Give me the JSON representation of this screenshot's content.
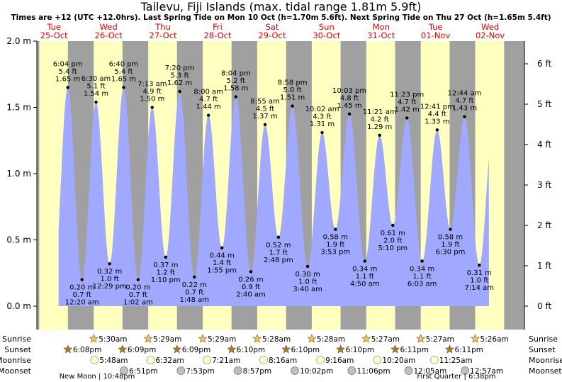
{
  "header": {
    "title": "Tailevu, Fiji Islands (max. tidal range 1.81m 5.9ft)",
    "subtitle": "Times are +12 (UTC +12.0hrs). Last Spring Tide on Mon 10 Oct (h=1.70m 5.6ft). Next Spring Tide on Thu 27 Oct (h=1.65m 5.4ft)"
  },
  "colors": {
    "day": "#ffffc0",
    "night": "#a0a0a0",
    "tide_fill": "#a0a8ff",
    "day_label": "#e00000",
    "sun_star": "#e8c860",
    "sunset_star": "#a08030",
    "moonrise": "#ffffc8",
    "moonset": "#c0c0c0"
  },
  "days": [
    {
      "dow": "Tue",
      "date": "25-Oct"
    },
    {
      "dow": "Wed",
      "date": "26-Oct"
    },
    {
      "dow": "Thu",
      "date": "27-Oct"
    },
    {
      "dow": "Fri",
      "date": "28-Oct"
    },
    {
      "dow": "Sat",
      "date": "29-Oct"
    },
    {
      "dow": "Sun",
      "date": "30-Oct"
    },
    {
      "dow": "Mon",
      "date": "31-Oct"
    },
    {
      "dow": "Tue",
      "date": "01-Nov"
    },
    {
      "dow": "Wed",
      "date": "02-Nov"
    }
  ],
  "bottom_rows": {
    "labels": [
      "Sunrise",
      "Sunset",
      "Moonrise",
      "Moonset"
    ],
    "sunrise": [
      "5:30am",
      "5:29am",
      "5:29am",
      "5:28am",
      "5:28am",
      "5:27am",
      "5:27am",
      "5:26am"
    ],
    "sunset": [
      "6:08pm",
      "6:09pm",
      "6:09pm",
      "6:10pm",
      "6:10pm",
      "6:10pm",
      "6:11pm",
      "6:11pm"
    ],
    "moonrise": [
      "5:48am",
      "6:32am",
      "7:21am",
      "8:16am",
      "9:16am",
      "10:20am",
      "11:25am"
    ],
    "moonset": [
      "6:51pm",
      "7:53pm",
      "8:57pm",
      "10:02pm",
      "11:06pm",
      "12:05am",
      "12:57am"
    ],
    "moon_phases": [
      {
        "label": "New Moon",
        "time": "10:48pm"
      },
      {
        "label": "First Quarter",
        "time": "6:38pm"
      }
    ]
  },
  "chart_data": {
    "type": "area",
    "title": "Tailevu, Fiji Islands (max. tidal range 1.81m 5.9ft)",
    "x_unit": "hours from 25-Oct 00:00 (local, UTC+12)",
    "ylabel_left": "m",
    "ylabel_right": "ft",
    "ylim_m": [
      -0.15,
      2.0
    ],
    "left_ticks": [
      "0.0 m",
      "0.5 m",
      "1.0 m",
      "1.5 m",
      "2.0 m"
    ],
    "left_tick_values": [
      0,
      0.5,
      1.0,
      1.5,
      2.0
    ],
    "right_ticks": [
      "0 ft",
      "1 ft",
      "2 ft",
      "3 ft",
      "4 ft",
      "5 ft",
      "6 ft"
    ],
    "right_tick_values": [
      0,
      1,
      2,
      3,
      4,
      5,
      6
    ],
    "sunrise_hours": [
      5.5,
      29.5,
      53.48,
      77.48,
      101.47,
      125.47,
      149.45,
      173.45,
      197.43
    ],
    "sunset_hours": [
      18.13,
      42.15,
      66.15,
      90.15,
      114.17,
      138.17,
      162.17,
      186.18,
      210.18
    ],
    "extremes": [
      {
        "t": 18.07,
        "m": 1.65,
        "time": "6:04 pm",
        "ft": "5.4 ft",
        "h": "1.65 m"
      },
      {
        "t": 24.33,
        "m": 0.2,
        "time": "12:20 am",
        "ft": "0.7 ft",
        "h": "0.20 m"
      },
      {
        "t": 30.5,
        "m": 1.54,
        "time": "6:30 am",
        "ft": "5.1 ft",
        "h": "1.54 m"
      },
      {
        "t": 36.48,
        "m": 0.32,
        "time": "12:29 pm",
        "ft": "1.0 ft",
        "h": "0.32 m"
      },
      {
        "t": 42.67,
        "m": 1.65,
        "time": "6:40 pm",
        "ft": "5.4 ft",
        "h": "1.65 m"
      },
      {
        "t": 49.03,
        "m": 0.2,
        "time": "1:02 am",
        "ft": "0.7 ft",
        "h": "0.20 m"
      },
      {
        "t": 55.22,
        "m": 1.5,
        "time": "7:13 am",
        "ft": "4.9 ft",
        "h": "1.50 m"
      },
      {
        "t": 61.17,
        "m": 0.37,
        "time": "1:10 pm",
        "ft": "1.2 ft",
        "h": "0.37 m"
      },
      {
        "t": 67.33,
        "m": 1.62,
        "time": "7:20 pm",
        "ft": "5.3 ft",
        "h": "1.62 m"
      },
      {
        "t": 73.8,
        "m": 0.22,
        "time": "1:48 am",
        "ft": "0.7 ft",
        "h": "0.22 m"
      },
      {
        "t": 80.0,
        "m": 1.44,
        "time": "8:00 am",
        "ft": "4.7 ft",
        "h": "1.44 m"
      },
      {
        "t": 85.92,
        "m": 0.44,
        "time": "1:55 pm",
        "ft": "1.4 ft",
        "h": "0.44 m"
      },
      {
        "t": 92.07,
        "m": 1.58,
        "time": "8:04 pm",
        "ft": "5.2 ft",
        "h": "1.58 m"
      },
      {
        "t": 98.67,
        "m": 0.26,
        "time": "2:40 am",
        "ft": "0.9 ft",
        "h": "0.26 m"
      },
      {
        "t": 104.92,
        "m": 1.37,
        "time": "8:55 am",
        "ft": "4.5 ft",
        "h": "1.37 m"
      },
      {
        "t": 110.8,
        "m": 0.52,
        "time": "2:48 pm",
        "ft": "1.7 ft",
        "h": "0.52 m"
      },
      {
        "t": 116.97,
        "m": 1.51,
        "time": "8:58 pm",
        "ft": "5.0 ft",
        "h": "1.51 m"
      },
      {
        "t": 123.67,
        "m": 0.3,
        "time": "3:40 am",
        "ft": "1.0 ft",
        "h": "0.30 m"
      },
      {
        "t": 130.03,
        "m": 1.31,
        "time": "10:02 am",
        "ft": "4.3 ft",
        "h": "1.31 m"
      },
      {
        "t": 135.88,
        "m": 0.58,
        "time": "3:53 pm",
        "ft": "1.9 ft",
        "h": "0.58 m"
      },
      {
        "t": 142.05,
        "m": 1.45,
        "time": "10:03 pm",
        "ft": "4.8 ft",
        "h": "1.45 m"
      },
      {
        "t": 148.83,
        "m": 0.34,
        "time": "4:50 am",
        "ft": "1.1 ft",
        "h": "0.34 m"
      },
      {
        "t": 155.35,
        "m": 1.29,
        "time": "11:21 am",
        "ft": "4.2 ft",
        "h": "1.29 m"
      },
      {
        "t": 161.17,
        "m": 0.61,
        "time": "5:10 pm",
        "ft": "2.0 ft",
        "h": "0.61 m"
      },
      {
        "t": 167.38,
        "m": 1.42,
        "time": "11:23 pm",
        "ft": "4.7 ft",
        "h": "1.42 m"
      },
      {
        "t": 174.05,
        "m": 0.34,
        "time": "6:03 am",
        "ft": "1.1 ft",
        "h": "0.34 m"
      },
      {
        "t": 180.68,
        "m": 1.33,
        "time": "12:41 pm",
        "ft": "4.4 ft",
        "h": "1.33 m"
      },
      {
        "t": 186.5,
        "m": 0.58,
        "time": "6:30 pm",
        "ft": "1.9 ft",
        "h": "0.58 m"
      },
      {
        "t": 192.73,
        "m": 1.43,
        "time": "12:44 am",
        "ft": "4.7 ft",
        "h": "1.43 m"
      },
      {
        "t": 199.23,
        "m": 0.31,
        "time": "7:14 am",
        "ft": "1.0 ft",
        "h": "0.31 m"
      }
    ]
  }
}
